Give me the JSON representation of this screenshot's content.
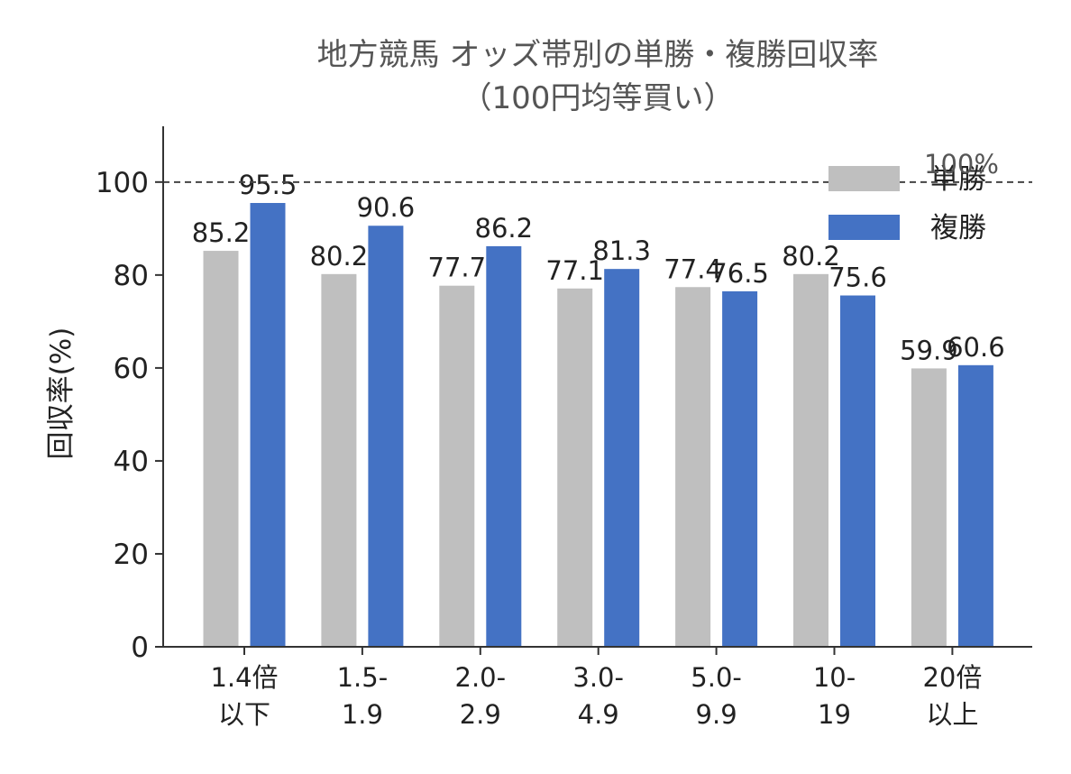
{
  "chart_data": {
    "type": "bar",
    "title_line1": "地方競馬 オッズ帯別の単勝・複勝回収率",
    "title_line2": "（100円均等買い）",
    "xlabel": "",
    "ylabel": "回収率(%)",
    "ylim": [
      0,
      112
    ],
    "yticks": [
      0,
      20,
      40,
      60,
      80,
      100
    ],
    "categories": [
      [
        "1.4倍",
        "以下"
      ],
      [
        "1.5-",
        "1.9"
      ],
      [
        "2.0-",
        "2.9"
      ],
      [
        "3.0-",
        "4.9"
      ],
      [
        "5.0-",
        "9.9"
      ],
      [
        "10-",
        "19"
      ],
      [
        "20倍",
        "以上"
      ]
    ],
    "series": [
      {
        "name": "単勝",
        "color": "#bfbfbf",
        "values": [
          85.2,
          80.2,
          77.7,
          77.1,
          77.4,
          80.2,
          59.9
        ]
      },
      {
        "name": "複勝",
        "color": "#4472c4",
        "values": [
          95.5,
          90.6,
          86.2,
          81.3,
          76.5,
          75.6,
          60.6
        ]
      }
    ],
    "reference_line": {
      "value": 100,
      "label": "100%",
      "style": "dashed",
      "color": "#444444"
    },
    "legend_position": "top-right",
    "grid": false
  }
}
